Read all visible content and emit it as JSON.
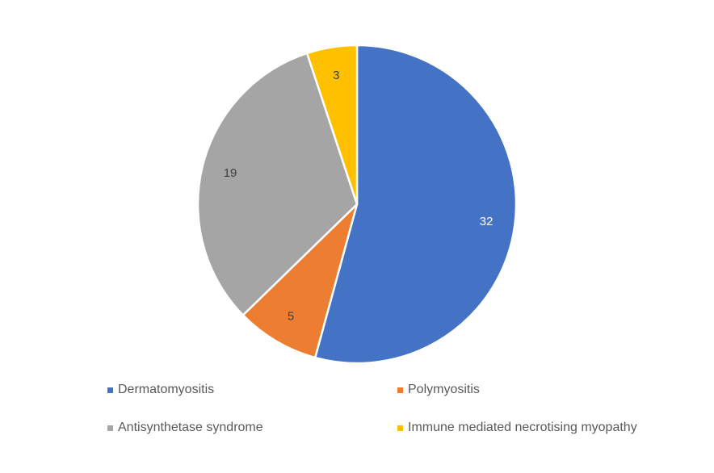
{
  "chart_data": {
    "type": "pie",
    "categories": [
      "Dermatomyositis",
      "Polymyositis",
      "Antisynthetase syndrome",
      "Immune mediated necrotising myopathy"
    ],
    "values": [
      32,
      5,
      19,
      3
    ],
    "colors": [
      "#4472C4",
      "#ED7D31",
      "#A5A5A5",
      "#FFC000"
    ],
    "label_colors": [
      "#ffffff",
      "#404040",
      "#404040",
      "#404040"
    ],
    "start_angle_deg": 0,
    "direction": "clockwise",
    "legend_position": "bottom",
    "title": ""
  }
}
